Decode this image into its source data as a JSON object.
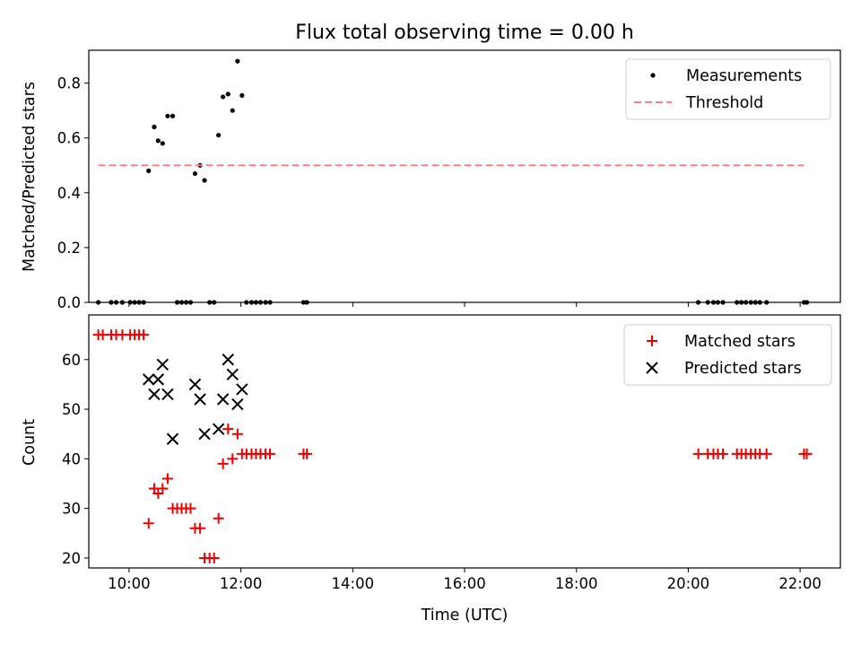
{
  "title": "Flux total observing time = 0.00 h",
  "colors": {
    "measure": "#000000",
    "threshold": "#ff8080",
    "matched": "#ee0000",
    "predicted": "#000000"
  },
  "chart_data": [
    {
      "type": "scatter",
      "ylabel": "Matched/Predicted stars",
      "xlim_hours": [
        9.28,
        22.72
      ],
      "ylim": [
        0,
        0.92
      ],
      "yticks": [
        0,
        0.2,
        0.4,
        0.6,
        0.8
      ],
      "ytick_labels": [
        "0.0",
        "0.2",
        "0.4",
        "0.6",
        "0.8"
      ],
      "xticks_hours": [
        10,
        12,
        14,
        16,
        18,
        20,
        22
      ],
      "legend": {
        "position": "top-right",
        "entries": [
          "Measurements",
          "Threshold"
        ]
      },
      "series": [
        {
          "name": "Measurements",
          "marker": "dot",
          "x": [
            9.45,
            9.68,
            9.77,
            9.88,
            10.02,
            10.1,
            10.18,
            10.26,
            10.35,
            10.45,
            10.52,
            10.6,
            10.69,
            10.78,
            10.86,
            10.94,
            11.02,
            11.1,
            11.18,
            11.27,
            11.35,
            11.44,
            11.52,
            11.6,
            11.68,
            11.77,
            11.85,
            11.94,
            12.02,
            12.1,
            12.19,
            12.27,
            12.35,
            12.44,
            12.52,
            13.12,
            13.18,
            20.18,
            20.35,
            20.45,
            20.53,
            20.62,
            20.87,
            20.95,
            21.03,
            21.12,
            21.2,
            21.28,
            21.4,
            22.07,
            22.12
          ],
          "y": [
            0,
            0,
            0,
            0,
            0,
            0,
            0,
            0,
            0.48,
            0.64,
            0.59,
            0.58,
            0.68,
            0.68,
            0,
            0,
            0,
            0,
            0.47,
            0.5,
            0.445,
            0,
            0,
            0.61,
            0.75,
            0.76,
            0.7,
            0.88,
            0.755,
            0,
            0,
            0,
            0,
            0,
            0,
            0,
            0,
            0,
            0,
            0,
            0,
            0,
            0,
            0,
            0,
            0,
            0,
            0,
            0,
            0,
            0
          ]
        },
        {
          "name": "Threshold",
          "marker": "dashed-line",
          "x": [
            9.45,
            22.07
          ],
          "y": [
            0.5,
            0.5
          ]
        }
      ]
    },
    {
      "type": "scatter",
      "xlabel": "Time (UTC)",
      "ylabel": "Count",
      "xlim_hours": [
        9.28,
        22.72
      ],
      "ylim": [
        18,
        69
      ],
      "yticks": [
        20,
        30,
        40,
        50,
        60
      ],
      "ytick_labels": [
        "20",
        "30",
        "40",
        "50",
        "60"
      ],
      "xticks_hours": [
        10,
        12,
        14,
        16,
        18,
        20,
        22
      ],
      "xtick_labels": [
        "10:00",
        "12:00",
        "14:00",
        "16:00",
        "18:00",
        "20:00",
        "22:00"
      ],
      "legend": {
        "position": "top-right",
        "entries": [
          "Matched stars",
          "Predicted stars"
        ]
      },
      "series": [
        {
          "name": "Matched stars",
          "marker": "plus",
          "x": [
            9.45,
            9.53,
            9.68,
            9.77,
            9.88,
            10.02,
            10.1,
            10.18,
            10.26,
            10.35,
            10.45,
            10.52,
            10.6,
            10.69,
            10.78,
            10.86,
            10.94,
            11.02,
            11.1,
            11.18,
            11.27,
            11.35,
            11.44,
            11.52,
            11.6,
            11.68,
            11.77,
            11.85,
            11.94,
            12.02,
            12.1,
            12.19,
            12.27,
            12.35,
            12.44,
            12.52,
            13.12,
            13.18,
            20.18,
            20.35,
            20.45,
            20.53,
            20.62,
            20.87,
            20.95,
            21.03,
            21.12,
            21.2,
            21.28,
            21.4,
            22.07,
            22.12
          ],
          "y": [
            65,
            65,
            65,
            65,
            65,
            65,
            65,
            65,
            65,
            27,
            34,
            33,
            34,
            36,
            30,
            30,
            30,
            30,
            30,
            26,
            26,
            20,
            20,
            20,
            28,
            39,
            46,
            40,
            45,
            41,
            41,
            41,
            41,
            41,
            41,
            41,
            41,
            41,
            41,
            41,
            41,
            41,
            41,
            41,
            41,
            41,
            41,
            41,
            41,
            41,
            41,
            41
          ]
        },
        {
          "name": "Predicted stars",
          "marker": "x",
          "x": [
            10.35,
            10.45,
            10.52,
            10.6,
            10.69,
            10.78,
            11.18,
            11.27,
            11.35,
            11.6,
            11.68,
            11.77,
            11.85,
            11.94,
            12.02
          ],
          "y": [
            56,
            53,
            56,
            59,
            53,
            44,
            55,
            52,
            45,
            46,
            52,
            60,
            57,
            51,
            54
          ]
        }
      ]
    }
  ]
}
